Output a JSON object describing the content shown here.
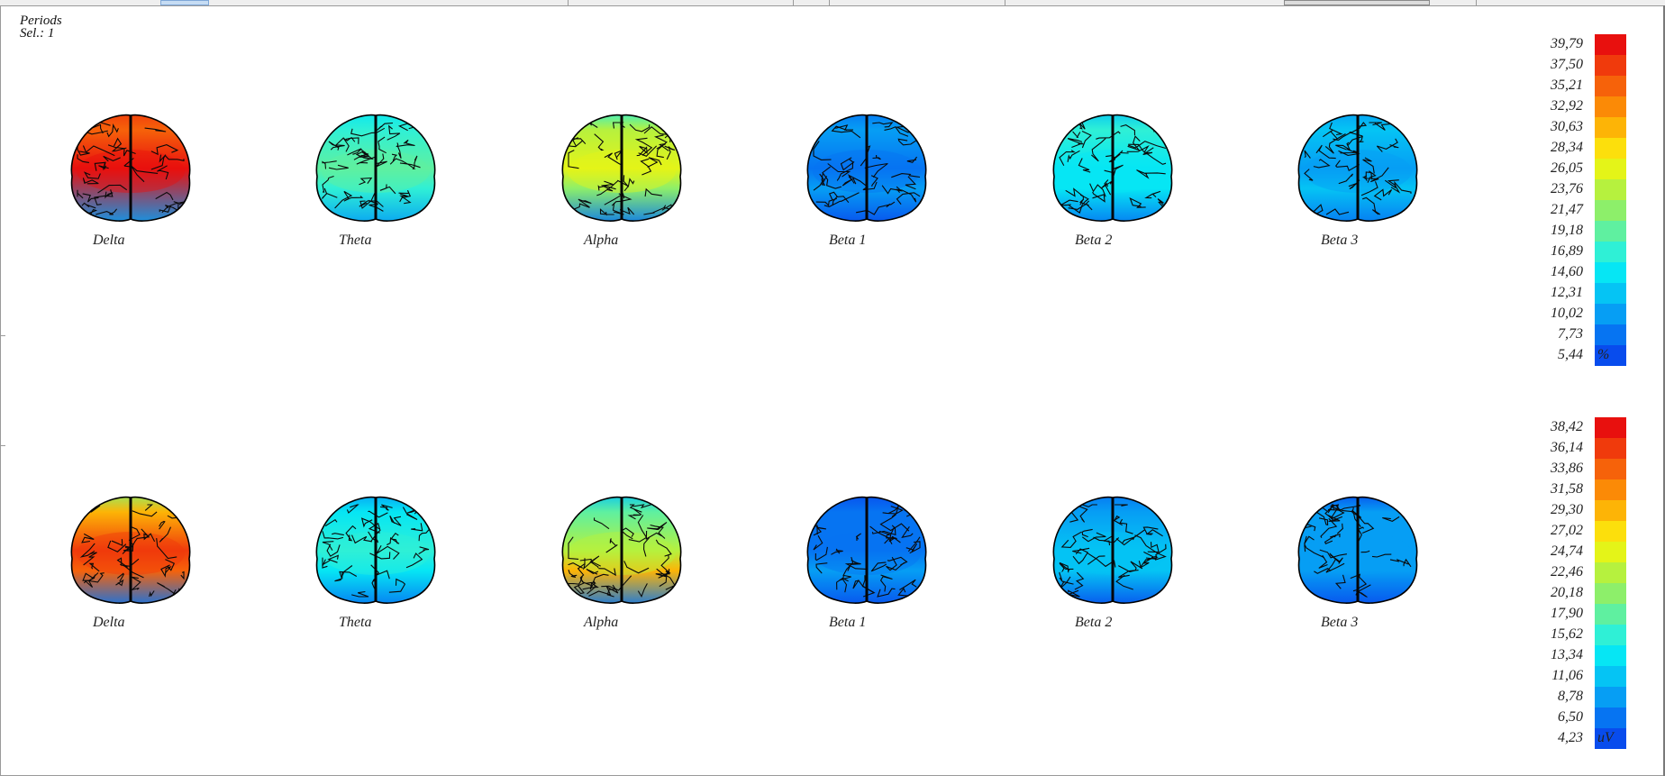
{
  "header": {
    "line1": "Periods",
    "line2": "Sel.: 1"
  },
  "rows": [
    {
      "bands": [
        {
          "label": "Delta"
        },
        {
          "label": "Theta"
        },
        {
          "label": "Alpha"
        },
        {
          "label": "Beta 1"
        },
        {
          "label": "Beta 2"
        },
        {
          "label": "Beta 3"
        }
      ],
      "scale": {
        "unit": "%",
        "ticks": [
          "39,79",
          "37,50",
          "35,21",
          "32,92",
          "30,63",
          "28,34",
          "26,05",
          "23,76",
          "21,47",
          "19,18",
          "16,89",
          "14,60",
          "12,31",
          "10,02",
          "7,73",
          "5,44"
        ]
      }
    },
    {
      "bands": [
        {
          "label": "Delta"
        },
        {
          "label": "Theta"
        },
        {
          "label": "Alpha"
        },
        {
          "label": "Beta 1"
        },
        {
          "label": "Beta 2"
        },
        {
          "label": "Beta 3"
        }
      ],
      "scale": {
        "unit": "uV",
        "ticks": [
          "38,42",
          "36,14",
          "33,86",
          "31,58",
          "29,30",
          "27,02",
          "24,74",
          "22,46",
          "20,18",
          "17,90",
          "15,62",
          "13,34",
          "11,06",
          "8,78",
          "6,50",
          "4,23"
        ]
      }
    }
  ],
  "colorscale": [
    "#e8100e",
    "#f03a0c",
    "#f6620a",
    "#fb8a06",
    "#fdb406",
    "#fcdf0c",
    "#e4f418",
    "#b6f13e",
    "#8def6a",
    "#5ff0a0",
    "#2ff0d6",
    "#06e6f4",
    "#05c4f4",
    "#069ef4",
    "#0674f2",
    "#084ced"
  ]
}
